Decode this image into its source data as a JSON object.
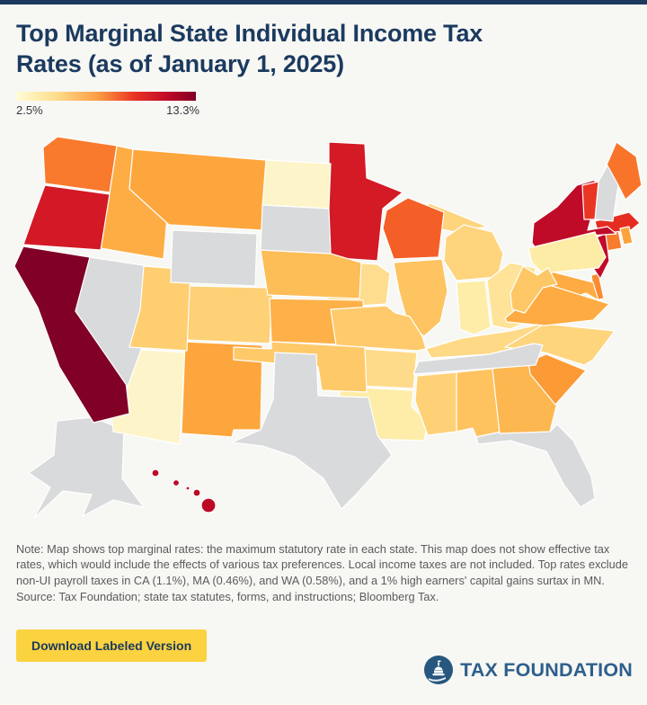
{
  "header": {
    "title_lines": [
      "Top Marginal State Individual Income Tax",
      "Rates (as of January 1, 2025)"
    ],
    "title_color": "#1b3a5f"
  },
  "legend": {
    "min_label": "2.5%",
    "max_label": "13.3%",
    "gradient": [
      "#fffdd6",
      "#fede8c",
      "#fd9b42",
      "#e93323",
      "#bb0726",
      "#800026"
    ]
  },
  "chart_data": {
    "type": "choropleth",
    "title": "Top Marginal State Individual Income Tax Rates (as of January 1, 2025)",
    "value_unit": "%",
    "value_range": [
      2.5,
      13.3
    ],
    "no_tax_color": "#d8dadc",
    "states": [
      {
        "code": "AL",
        "name": "Alabama",
        "rate": 5.0,
        "color": "#fec35f"
      },
      {
        "code": "AK",
        "name": "Alaska",
        "rate": null,
        "color": "#d8dadc"
      },
      {
        "code": "AZ",
        "name": "Arizona",
        "rate": 2.5,
        "color": "#fdf5c9"
      },
      {
        "code": "AR",
        "name": "Arkansas",
        "rate": 3.9,
        "color": "#fedb8a"
      },
      {
        "code": "CA",
        "name": "California",
        "rate": 13.3,
        "color": "#800026"
      },
      {
        "code": "CO",
        "name": "Colorado",
        "rate": 4.4,
        "color": "#fed177"
      },
      {
        "code": "CT",
        "name": "Connecticut",
        "rate": 6.99,
        "color": "#f97b2d"
      },
      {
        "code": "DE",
        "name": "Delaware",
        "rate": 6.6,
        "color": "#fb8a30"
      },
      {
        "code": "FL",
        "name": "Florida",
        "rate": null,
        "color": "#d8dadc"
      },
      {
        "code": "GA",
        "name": "Georgia",
        "rate": 5.39,
        "color": "#fdb750"
      },
      {
        "code": "HI",
        "name": "Hawaii",
        "rate": 11.0,
        "color": "#bc0926"
      },
      {
        "code": "ID",
        "name": "Idaho",
        "rate": 5.695,
        "color": "#fdad44"
      },
      {
        "code": "IL",
        "name": "Illinois",
        "rate": 4.95,
        "color": "#fec461"
      },
      {
        "code": "IN",
        "name": "Indiana",
        "rate": 3.0,
        "color": "#fdeda8"
      },
      {
        "code": "IA",
        "name": "Iowa",
        "rate": 3.8,
        "color": "#fedd8e"
      },
      {
        "code": "KS",
        "name": "Kansas",
        "rate": 5.58,
        "color": "#fdb148"
      },
      {
        "code": "KY",
        "name": "Kentucky",
        "rate": 4.0,
        "color": "#fed986"
      },
      {
        "code": "LA",
        "name": "Louisiana",
        "rate": 3.0,
        "color": "#fdeda8"
      },
      {
        "code": "ME",
        "name": "Maine",
        "rate": 7.15,
        "color": "#f8742b"
      },
      {
        "code": "MD",
        "name": "Maryland",
        "rate": 5.75,
        "color": "#fdab42"
      },
      {
        "code": "MA",
        "name": "Massachusetts",
        "rate": 9.0,
        "color": "#e52c21"
      },
      {
        "code": "MI",
        "name": "Michigan",
        "rate": 4.25,
        "color": "#fed47d"
      },
      {
        "code": "MN",
        "name": "Minnesota",
        "rate": 9.85,
        "color": "#d31a25"
      },
      {
        "code": "MS",
        "name": "Mississippi",
        "rate": 4.4,
        "color": "#fed177"
      },
      {
        "code": "MO",
        "name": "Missouri",
        "rate": 4.7,
        "color": "#feca6b"
      },
      {
        "code": "MT",
        "name": "Montana",
        "rate": 5.9,
        "color": "#fda63d"
      },
      {
        "code": "NE",
        "name": "Nebraska",
        "rate": 5.2,
        "color": "#fdbd57"
      },
      {
        "code": "NV",
        "name": "Nevada",
        "rate": null,
        "color": "#d8dadc"
      },
      {
        "code": "NH",
        "name": "New Hampshire",
        "rate": null,
        "color": "#d8dadc"
      },
      {
        "code": "NJ",
        "name": "New Jersey",
        "rate": 10.75,
        "color": "#c10c28"
      },
      {
        "code": "NM",
        "name": "New Mexico",
        "rate": 5.9,
        "color": "#fda63d"
      },
      {
        "code": "NY",
        "name": "New York",
        "rate": 10.9,
        "color": "#bf0a28"
      },
      {
        "code": "NC",
        "name": "North Carolina",
        "rate": 4.25,
        "color": "#fed47d"
      },
      {
        "code": "ND",
        "name": "North Dakota",
        "rate": 2.5,
        "color": "#fdf5c9"
      },
      {
        "code": "OH",
        "name": "Ohio",
        "rate": 3.5,
        "color": "#fee399"
      },
      {
        "code": "OK",
        "name": "Oklahoma",
        "rate": 4.75,
        "color": "#fec969"
      },
      {
        "code": "OR",
        "name": "Oregon",
        "rate": 9.9,
        "color": "#d21925"
      },
      {
        "code": "PA",
        "name": "Pennsylvania",
        "rate": 3.07,
        "color": "#fdeca6"
      },
      {
        "code": "RI",
        "name": "Rhode Island",
        "rate": 5.99,
        "color": "#fda33b"
      },
      {
        "code": "SC",
        "name": "South Carolina",
        "rate": 6.2,
        "color": "#fc9a36"
      },
      {
        "code": "SD",
        "name": "South Dakota",
        "rate": null,
        "color": "#d8dadc"
      },
      {
        "code": "TN",
        "name": "Tennessee",
        "rate": null,
        "color": "#d8dadc"
      },
      {
        "code": "TX",
        "name": "Texas",
        "rate": null,
        "color": "#d8dadc"
      },
      {
        "code": "UT",
        "name": "Utah",
        "rate": 4.55,
        "color": "#fece71"
      },
      {
        "code": "VT",
        "name": "Vermont",
        "rate": 8.75,
        "color": "#e93623"
      },
      {
        "code": "VA",
        "name": "Virginia",
        "rate": 5.75,
        "color": "#fdab42"
      },
      {
        "code": "WA",
        "name": "Washington",
        "rate": 7.0,
        "color": "#f97a2d"
      },
      {
        "code": "WV",
        "name": "West Virginia",
        "rate": 4.82,
        "color": "#fec766"
      },
      {
        "code": "WI",
        "name": "Wisconsin",
        "rate": 7.65,
        "color": "#f45f28"
      },
      {
        "code": "WY",
        "name": "Wyoming",
        "rate": null,
        "color": "#d8dadc"
      }
    ]
  },
  "notes": {
    "note": "Note: Map shows top marginal rates: the maximum statutory rate in each state. This map does not show effective tax rates, which would include the effects of various tax preferences. Local income taxes are not included. Top rates exclude non-UI payroll taxes in CA (1.1%), MA (0.46%), and WA (0.58%), and a 1% high earners' capital gains surtax in MN.",
    "source": "Source: Tax Foundation; state tax statutes, forms, and instructions; Bloomberg Tax."
  },
  "footer": {
    "download_button_label": "Download Labeled Version",
    "button_bg": "#fbd23f",
    "logo_text": "TAX FOUNDATION",
    "logo_color": "#2e5f8c"
  },
  "page": {
    "background": "#f7f7f4",
    "top_border_color": "#1c3a5e"
  }
}
